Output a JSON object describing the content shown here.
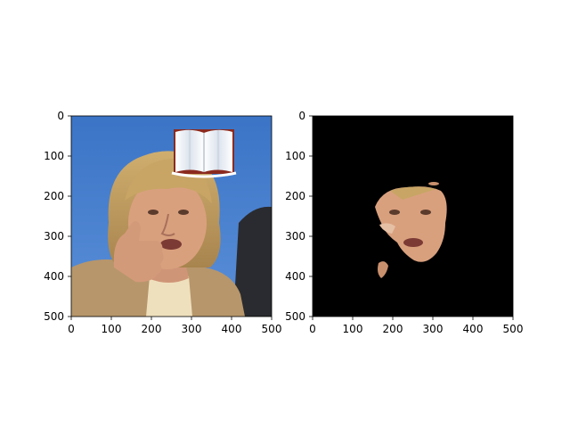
{
  "figure": {
    "panels": [
      {
        "id": "left",
        "image": "photo of a woman with blond hair giving a thumbs-up, with a small open-book icon overlay",
        "x_ticks": [
          "0",
          "100",
          "200",
          "300",
          "400",
          "500"
        ],
        "y_ticks": [
          "0",
          "100",
          "200",
          "300",
          "400",
          "500"
        ]
      },
      {
        "id": "right",
        "image": "segmentation mask on black background showing only the face region",
        "x_ticks": [
          "0",
          "100",
          "200",
          "300",
          "400",
          "500"
        ],
        "y_ticks": [
          "0",
          "100",
          "200",
          "300",
          "400",
          "500"
        ]
      }
    ],
    "colors": {
      "background": "#ffffff",
      "left_sky": "#3f77c7",
      "skin": "#d9a07e",
      "hair": "#c3a062",
      "jacket": "#b7966b",
      "mask_bg": "#000000"
    }
  }
}
